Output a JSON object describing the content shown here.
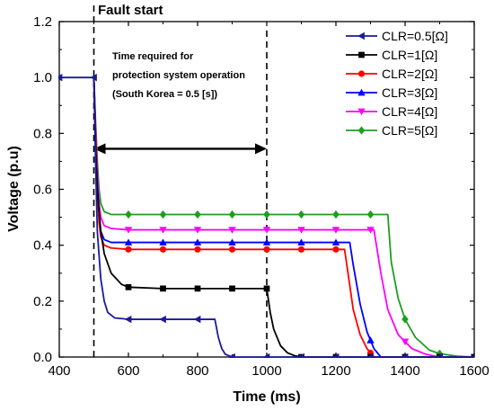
{
  "chart_data": {
    "type": "line",
    "xlabel": "Time (ms)",
    "ylabel": "Voltage (p.u)",
    "xlim": [
      400,
      1600
    ],
    "ylim": [
      0.0,
      1.2
    ],
    "xticks": [
      "400",
      "600",
      "800",
      "1000",
      "1200",
      "1400",
      "1600"
    ],
    "yticks": [
      "0.0",
      "0.2",
      "0.4",
      "0.6",
      "0.8",
      "1.0",
      "1.2"
    ],
    "grid": false,
    "legend_position": "top-right",
    "annotations": {
      "fault_start": "Fault start",
      "time_required_line1": "Time required for",
      "time_required_line2": "protection system operation",
      "time_required_line3": "(South Korea = 0.5 [s])"
    },
    "vlines": [
      500,
      1000
    ],
    "arrow": {
      "x_from": 500,
      "x_to": 1000,
      "y": 0.745
    },
    "series": [
      {
        "name": "CLR=0.5[Ω]",
        "color": "#1a1a9c",
        "marker": "triangle-left",
        "x": [
          400,
          500,
          505,
          510,
          520,
          530,
          540,
          560,
          600,
          700,
          800,
          850,
          860,
          870,
          880,
          900,
          1000,
          1600
        ],
        "y": [
          1.0,
          1.0,
          0.7,
          0.45,
          0.28,
          0.2,
          0.16,
          0.14,
          0.135,
          0.135,
          0.135,
          0.135,
          0.07,
          0.03,
          0.01,
          0.0,
          0.0,
          0.0
        ],
        "markers_x": [
          400,
          500,
          600,
          700,
          800,
          900,
          1000,
          1100,
          1200,
          1300,
          1400,
          1500,
          1600
        ]
      },
      {
        "name": "CLR=1[Ω]",
        "color": "#000000",
        "marker": "square",
        "x": [
          500,
          505,
          510,
          520,
          530,
          550,
          580,
          600,
          700,
          800,
          900,
          1000,
          1010,
          1020,
          1040,
          1060,
          1080,
          1100,
          1600
        ],
        "y": [
          1.0,
          0.75,
          0.6,
          0.45,
          0.37,
          0.3,
          0.26,
          0.25,
          0.245,
          0.245,
          0.245,
          0.245,
          0.16,
          0.1,
          0.04,
          0.015,
          0.005,
          0.0,
          0.0
        ],
        "markers_x": [
          600,
          700,
          800,
          900,
          1000,
          1100,
          1200,
          1300,
          1400,
          1500,
          1600
        ]
      },
      {
        "name": "CLR=2[Ω]",
        "color": "#ff0000",
        "marker": "circle",
        "x": [
          500,
          505,
          510,
          515,
          520,
          530,
          550,
          600,
          700,
          800,
          900,
          1000,
          1100,
          1200,
          1225,
          1235,
          1250,
          1270,
          1290,
          1310,
          1600
        ],
        "y": [
          1.0,
          0.8,
          0.6,
          0.48,
          0.43,
          0.4,
          0.39,
          0.385,
          0.385,
          0.385,
          0.385,
          0.385,
          0.385,
          0.385,
          0.385,
          0.3,
          0.17,
          0.08,
          0.03,
          0.0,
          0.0
        ],
        "markers_x": [
          600,
          700,
          800,
          900,
          1000,
          1100,
          1200,
          1300,
          1400,
          1500,
          1600
        ]
      },
      {
        "name": "CLR=3[Ω]",
        "color": "#0000ff",
        "marker": "triangle-up",
        "x": [
          500,
          505,
          510,
          515,
          520,
          530,
          550,
          600,
          700,
          800,
          900,
          1000,
          1100,
          1200,
          1240,
          1250,
          1270,
          1290,
          1310,
          1330,
          1600
        ],
        "y": [
          1.0,
          0.8,
          0.62,
          0.5,
          0.45,
          0.42,
          0.41,
          0.41,
          0.41,
          0.41,
          0.41,
          0.41,
          0.41,
          0.41,
          0.41,
          0.33,
          0.19,
          0.09,
          0.03,
          0.0,
          0.0
        ],
        "markers_x": [
          600,
          700,
          800,
          900,
          1000,
          1100,
          1200,
          1300,
          1400,
          1500,
          1600
        ]
      },
      {
        "name": "CLR=4[Ω]",
        "color": "#ff00ff",
        "marker": "triangle-down",
        "x": [
          500,
          505,
          510,
          515,
          520,
          530,
          550,
          600,
          700,
          800,
          900,
          1000,
          1100,
          1200,
          1300,
          1310,
          1330,
          1350,
          1380,
          1420,
          1460,
          1500,
          1600
        ],
        "y": [
          1.0,
          0.82,
          0.66,
          0.55,
          0.5,
          0.47,
          0.46,
          0.455,
          0.455,
          0.455,
          0.455,
          0.455,
          0.455,
          0.455,
          0.455,
          0.455,
          0.3,
          0.17,
          0.08,
          0.03,
          0.01,
          0.0,
          0.0
        ],
        "markers_x": [
          600,
          700,
          800,
          900,
          1000,
          1100,
          1200,
          1300,
          1400,
          1500,
          1600
        ]
      },
      {
        "name": "CLR=5[Ω]",
        "color": "#1f9e1f",
        "marker": "diamond",
        "x": [
          500,
          505,
          510,
          515,
          520,
          530,
          550,
          600,
          700,
          800,
          900,
          1000,
          1100,
          1200,
          1300,
          1350,
          1360,
          1380,
          1400,
          1430,
          1470,
          1500,
          1550,
          1600
        ],
        "y": [
          1.0,
          0.84,
          0.7,
          0.6,
          0.55,
          0.52,
          0.51,
          0.51,
          0.51,
          0.51,
          0.51,
          0.51,
          0.51,
          0.51,
          0.51,
          0.51,
          0.34,
          0.21,
          0.135,
          0.07,
          0.025,
          0.012,
          0.003,
          0.0
        ],
        "markers_x": [
          600,
          700,
          800,
          900,
          1000,
          1100,
          1200,
          1300,
          1400,
          1500,
          1600
        ]
      }
    ]
  }
}
